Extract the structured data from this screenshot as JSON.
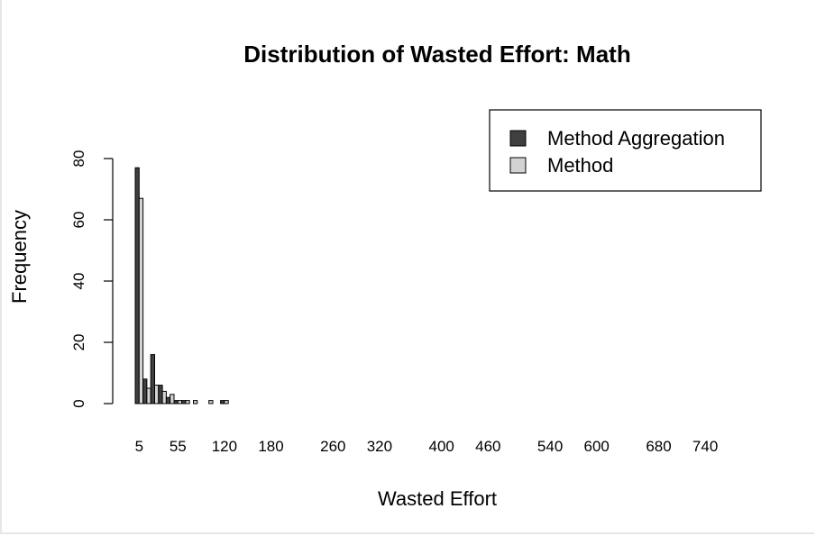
{
  "chart_data": {
    "type": "bar",
    "title": "Distribution of Wasted Effort: Math",
    "xlabel": "Wasted Effort",
    "ylabel": "Frequency",
    "ylim": [
      0,
      80
    ],
    "yticks": [
      "0",
      "20",
      "40",
      "60",
      "80"
    ],
    "xtick_labels": [
      "5",
      "55",
      "120",
      "180",
      "260",
      "320",
      "400",
      "460",
      "540",
      "600",
      "680",
      "740"
    ],
    "categories": [
      "5",
      "15",
      "25",
      "35",
      "45",
      "55",
      "65",
      "75",
      "85",
      "95",
      "105",
      "115",
      "125",
      "135",
      "145",
      "155",
      "165",
      "175",
      "185",
      "195",
      "205",
      "215",
      "225",
      "235",
      "245",
      "255",
      "265",
      "275",
      "285",
      "295",
      "305",
      "315",
      "325",
      "335",
      "345",
      "355",
      "365",
      "375",
      "385",
      "395",
      "405",
      "415",
      "425",
      "435",
      "445",
      "455",
      "465",
      "475",
      "485",
      "495",
      "505",
      "515",
      "525",
      "535",
      "545",
      "555",
      "565",
      "575",
      "585",
      "595",
      "605",
      "615",
      "625",
      "635",
      "645",
      "655",
      "665",
      "675",
      "685",
      "695",
      "705",
      "715",
      "725",
      "735",
      "745",
      "755",
      "765",
      "775"
    ],
    "series": [
      {
        "name": "Method Aggregation",
        "color": "#404040",
        "values": [
          77,
          8,
          16,
          6,
          2,
          1,
          1,
          0,
          0,
          0,
          0,
          1,
          0,
          0,
          0,
          0,
          0,
          0,
          0,
          0,
          0,
          0,
          0,
          0,
          0,
          0,
          0,
          0,
          0,
          0,
          0,
          0,
          0,
          0,
          0,
          0,
          0,
          0,
          0,
          0,
          0,
          0,
          0,
          0,
          0,
          0,
          0,
          0,
          0,
          0,
          0,
          0,
          0,
          0,
          0,
          0,
          0,
          0,
          0,
          0,
          0,
          0,
          0,
          0,
          0,
          0,
          0,
          0,
          0,
          0,
          0,
          0,
          0,
          0,
          0,
          0,
          0,
          0
        ]
      },
      {
        "name": "Method",
        "color": "#d3d3d3",
        "values": [
          67,
          5,
          6,
          4,
          3,
          1,
          1,
          1,
          0,
          1,
          0,
          1,
          0,
          0,
          0,
          0,
          0,
          0,
          0,
          0,
          0,
          0,
          0,
          0,
          0,
          0,
          0,
          0,
          0,
          0,
          0,
          0,
          0,
          0,
          0,
          0,
          0,
          0,
          0,
          0,
          0,
          0,
          0,
          0,
          0,
          0,
          0,
          0,
          0,
          0,
          0,
          0,
          0,
          0,
          0,
          0,
          0,
          0,
          0,
          0,
          0,
          0,
          0,
          0,
          0,
          0,
          0,
          0,
          0,
          0,
          0,
          0,
          0,
          0,
          0,
          0,
          0,
          0
        ]
      }
    ],
    "legend": "top-right",
    "grid": false
  }
}
